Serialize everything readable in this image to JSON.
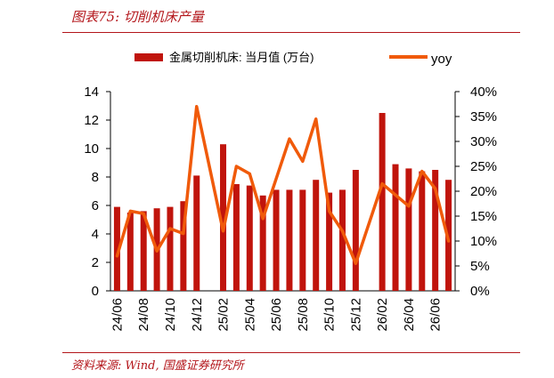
{
  "figure": {
    "title": "图表75:  切削机床产量",
    "source": "资料来源:  Wind,  国盛证券研究所"
  },
  "colors": {
    "bar": "#c0140c",
    "line": "#f05a0a",
    "accent": "#b3151a"
  },
  "chart_data": {
    "type": "bar",
    "categories": [
      "24/06",
      "24/07",
      "24/08",
      "24/09",
      "24/10",
      "24/11",
      "24/12",
      "25/01",
      "25/02",
      "25/03",
      "25/04",
      "25/05",
      "25/06",
      "25/07",
      "25/08",
      "25/09",
      "25/10",
      "25/11",
      "25/12",
      "26/01",
      "26/02",
      "26/03",
      "26/04",
      "26/05",
      "26/06",
      "26/07"
    ],
    "x_tick_labels": [
      "24/06",
      "24/08",
      "24/10",
      "24/12",
      "25/02",
      "25/04",
      "25/06",
      "25/08",
      "25/10",
      "25/12",
      "26/02",
      "26/04",
      "26/06"
    ],
    "series": [
      {
        "name": "金属切削机床: 当月值 (万台)",
        "type": "bar",
        "axis": "left",
        "values": [
          5.9,
          5.5,
          5.6,
          5.8,
          5.9,
          6.3,
          8.1,
          null,
          10.3,
          7.5,
          7.4,
          6.7,
          7.1,
          7.1,
          7.1,
          7.8,
          6.9,
          7.1,
          8.5,
          null,
          12.5,
          8.9,
          8.6,
          8.4,
          8.5,
          7.8
        ]
      },
      {
        "name": "yoy",
        "type": "line",
        "axis": "right",
        "values": [
          7,
          16,
          15.5,
          8,
          12.5,
          11.5,
          37,
          null,
          12,
          25,
          23.5,
          14.5,
          null,
          30.5,
          26,
          34.5,
          16,
          12,
          5.5,
          null,
          21.5,
          null,
          17,
          24,
          20.5,
          10
        ]
      }
    ],
    "y_left": {
      "ylim": [
        0,
        14
      ],
      "ticks": [
        "0",
        "2",
        "4",
        "6",
        "8",
        "10",
        "12",
        "14"
      ]
    },
    "y_right": {
      "ylim": [
        0,
        40
      ],
      "ticks": [
        "0%",
        "5%",
        "10%",
        "15%",
        "20%",
        "25%",
        "30%",
        "35%",
        "40%"
      ]
    },
    "legend": {
      "placement": "top"
    },
    "grid": false
  }
}
